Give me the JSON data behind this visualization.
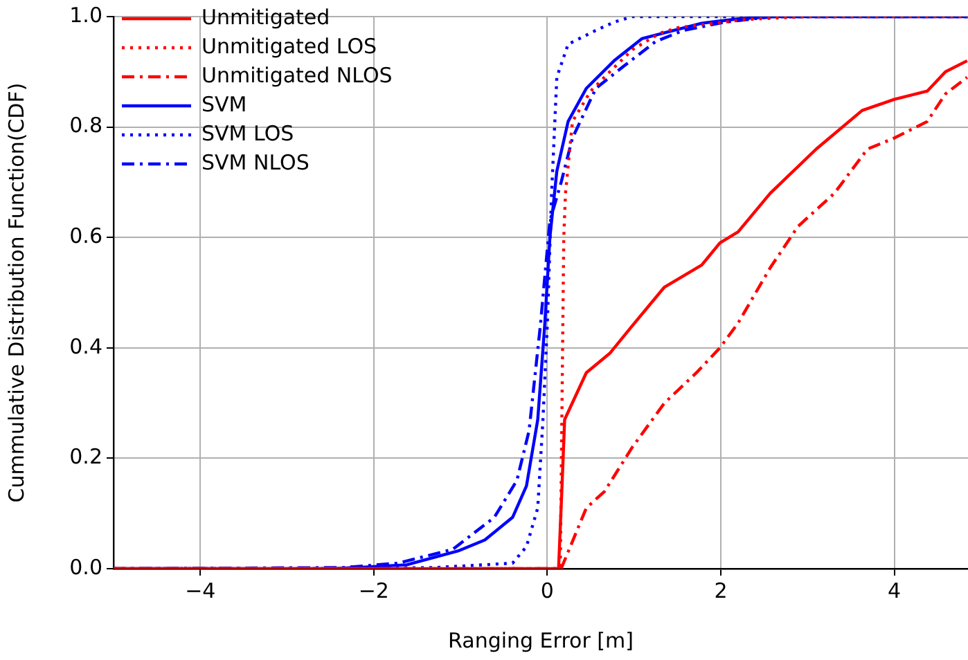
{
  "chart_data": {
    "type": "line",
    "xlabel": "Ranging Error [m]",
    "ylabel": "Cummulative Distribution Function(CDF)",
    "xlim": [
      -5,
      4.85
    ],
    "ylim": [
      0,
      1
    ],
    "xticks": [
      {
        "value": -4,
        "label": "−4"
      },
      {
        "value": -2,
        "label": "−2"
      },
      0,
      2,
      4
    ],
    "yticks": [
      {
        "value": 0,
        "label": "0.0"
      },
      0.2,
      0.4,
      0.6,
      0.8,
      {
        "value": 1,
        "label": "1.0"
      }
    ],
    "grid": true,
    "legend": "top left",
    "series": [
      {
        "name": "Unmitigated",
        "color": "#ff0000",
        "line_style": "solid",
        "x": [
          -5,
          0.13,
          0.17,
          0.2,
          0.45,
          0.72,
          0.98,
          1.35,
          1.78,
          1.99,
          2.2,
          2.57,
          3.1,
          3.63,
          4.0,
          4.38,
          4.59,
          4.84
        ],
        "values": [
          0,
          0,
          0.15,
          0.27,
          0.355,
          0.39,
          0.44,
          0.51,
          0.55,
          0.59,
          0.61,
          0.68,
          0.76,
          0.83,
          0.85,
          0.865,
          0.9,
          0.92
        ]
      },
      {
        "name": "Unmitigated LOS",
        "color": "#ff0000",
        "line_style": "dotted",
        "x": [
          -5,
          0.15,
          0.17,
          0.19,
          0.21,
          0.29,
          0.5,
          0.72,
          0.98,
          1.3,
          1.51,
          2.3,
          3.0,
          4.85
        ],
        "values": [
          0,
          0,
          0.3,
          0.6,
          0.68,
          0.81,
          0.865,
          0.9,
          0.94,
          0.97,
          0.98,
          0.995,
          1,
          1
        ]
      },
      {
        "name": "Unmitigated NLOS",
        "color": "#ff0000",
        "line_style": "dashdot",
        "x": [
          -5,
          0.16,
          0.45,
          0.66,
          0.98,
          1.35,
          1.72,
          1.99,
          2.2,
          2.57,
          2.89,
          3.31,
          3.69,
          4.0,
          4.38,
          4.59,
          4.84
        ],
        "values": [
          0,
          0,
          0.11,
          0.14,
          0.22,
          0.3,
          0.355,
          0.4,
          0.445,
          0.545,
          0.62,
          0.68,
          0.76,
          0.78,
          0.81,
          0.86,
          0.89
        ]
      },
      {
        "name": "SVM",
        "color": "#0000ff",
        "line_style": "solid",
        "x": [
          -5,
          -2.47,
          -1.62,
          -1.03,
          -0.72,
          -0.4,
          -0.24,
          -0.11,
          -0.03,
          0.03,
          0.11,
          0.24,
          0.45,
          0.77,
          1.09,
          1.46,
          1.78,
          2.2,
          2.6,
          4.85
        ],
        "values": [
          0,
          0,
          0.007,
          0.032,
          0.052,
          0.093,
          0.15,
          0.27,
          0.44,
          0.6,
          0.72,
          0.81,
          0.87,
          0.92,
          0.96,
          0.975,
          0.988,
          0.996,
          1,
          1
        ]
      },
      {
        "name": "SVM LOS",
        "color": "#0000ff",
        "line_style": "dotted",
        "x": [
          -5,
          -2.5,
          -1.3,
          -0.4,
          -0.24,
          -0.11,
          -0.05,
          0.0,
          0.05,
          0.11,
          0.24,
          0.56,
          0.77,
          0.98,
          4.85
        ],
        "values": [
          0,
          0,
          0.002,
          0.01,
          0.04,
          0.11,
          0.27,
          0.44,
          0.68,
          0.89,
          0.95,
          0.975,
          0.99,
          1,
          1
        ]
      },
      {
        "name": "SVM NLOS",
        "color": "#0000ff",
        "line_style": "dashdot",
        "x": [
          -5,
          -2.36,
          -1.72,
          -1.09,
          -0.61,
          -0.35,
          -0.21,
          -0.08,
          0.03,
          0.16,
          0.29,
          0.56,
          0.88,
          1.25,
          1.57,
          2.05,
          2.6,
          4.85
        ],
        "values": [
          0,
          0.002,
          0.01,
          0.035,
          0.093,
          0.16,
          0.25,
          0.44,
          0.63,
          0.7,
          0.78,
          0.87,
          0.91,
          0.955,
          0.975,
          0.99,
          1,
          1
        ]
      }
    ]
  }
}
